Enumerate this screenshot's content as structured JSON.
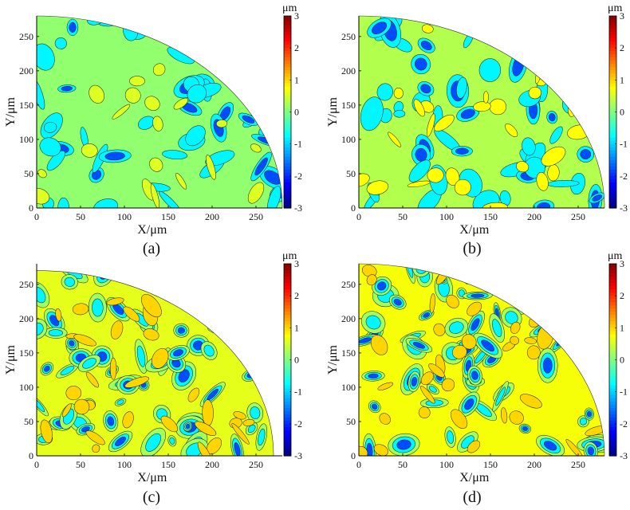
{
  "chart_data": [
    {
      "type": "heatmap",
      "panel": "(a)",
      "xlabel": "X/μm",
      "ylabel": "Y/μm",
      "xlim": [
        0,
        280
      ],
      "ylim": [
        0,
        280
      ],
      "xticks": [
        0,
        50,
        100,
        150,
        200,
        250
      ],
      "yticks": [
        0,
        50,
        100,
        150,
        200,
        250
      ],
      "region": "quarter circle of radius 280",
      "colorbar": {
        "unit": "μm",
        "range": [
          -3,
          3
        ],
        "ticks": [
          -3,
          -2,
          -1,
          0,
          1,
          2,
          3
        ]
      },
      "values": {
        "base_level": 0.1,
        "min_level": -2.0,
        "max_level": 1.0,
        "dominant": "green (~0)"
      }
    },
    {
      "type": "heatmap",
      "panel": "(b)",
      "xlabel": "X/μm",
      "ylabel": "Y/μm",
      "xlim": [
        0,
        280
      ],
      "ylim": [
        0,
        280
      ],
      "xticks": [
        0,
        50,
        100,
        150,
        200,
        250
      ],
      "yticks": [
        0,
        50,
        100,
        150,
        200,
        250
      ],
      "region": "quarter circle of radius 280",
      "colorbar": {
        "unit": "μm",
        "range": [
          -3,
          3
        ],
        "ticks": [
          -3,
          -2,
          -1,
          0,
          1,
          2,
          3
        ]
      },
      "values": {
        "base_level": 0.3,
        "min_level": -2.2,
        "max_level": 1.0,
        "dominant": "green / yellow-green (0 to 0.5)"
      }
    },
    {
      "type": "heatmap",
      "panel": "(c)",
      "xlabel": "X/μm",
      "ylabel": "Y/μm",
      "xlim": [
        0,
        280
      ],
      "ylim": [
        0,
        280
      ],
      "xticks": [
        0,
        50,
        100,
        150,
        200,
        250
      ],
      "yticks": [
        0,
        50,
        100,
        150,
        200,
        250
      ],
      "region": "quarter circle of radius 270",
      "colorbar": {
        "unit": "μm",
        "range": [
          -3,
          3
        ],
        "ticks": [
          -3,
          -2,
          -1,
          0,
          1,
          2,
          3
        ]
      },
      "values": {
        "base_level": 0.6,
        "min_level": -2.3,
        "max_level": 1.0,
        "dominant": "yellow / green with blue pits"
      }
    },
    {
      "type": "heatmap",
      "panel": "(d)",
      "xlabel": "X/μm",
      "ylabel": "Y/μm",
      "xlim": [
        0,
        280
      ],
      "ylim": [
        0,
        280
      ],
      "xticks": [
        0,
        50,
        100,
        150,
        200,
        250
      ],
      "yticks": [
        0,
        50,
        100,
        150,
        200,
        250
      ],
      "region": "quarter circle of radius 280",
      "colorbar": {
        "unit": "μm",
        "range": [
          -3,
          3
        ],
        "ticks": [
          -3,
          -2,
          -1,
          0,
          1,
          2,
          3
        ]
      },
      "values": {
        "base_level": 0.7,
        "min_level": -2.5,
        "max_level": 1.0,
        "dominant": "yellow with dark blue pits"
      }
    }
  ]
}
